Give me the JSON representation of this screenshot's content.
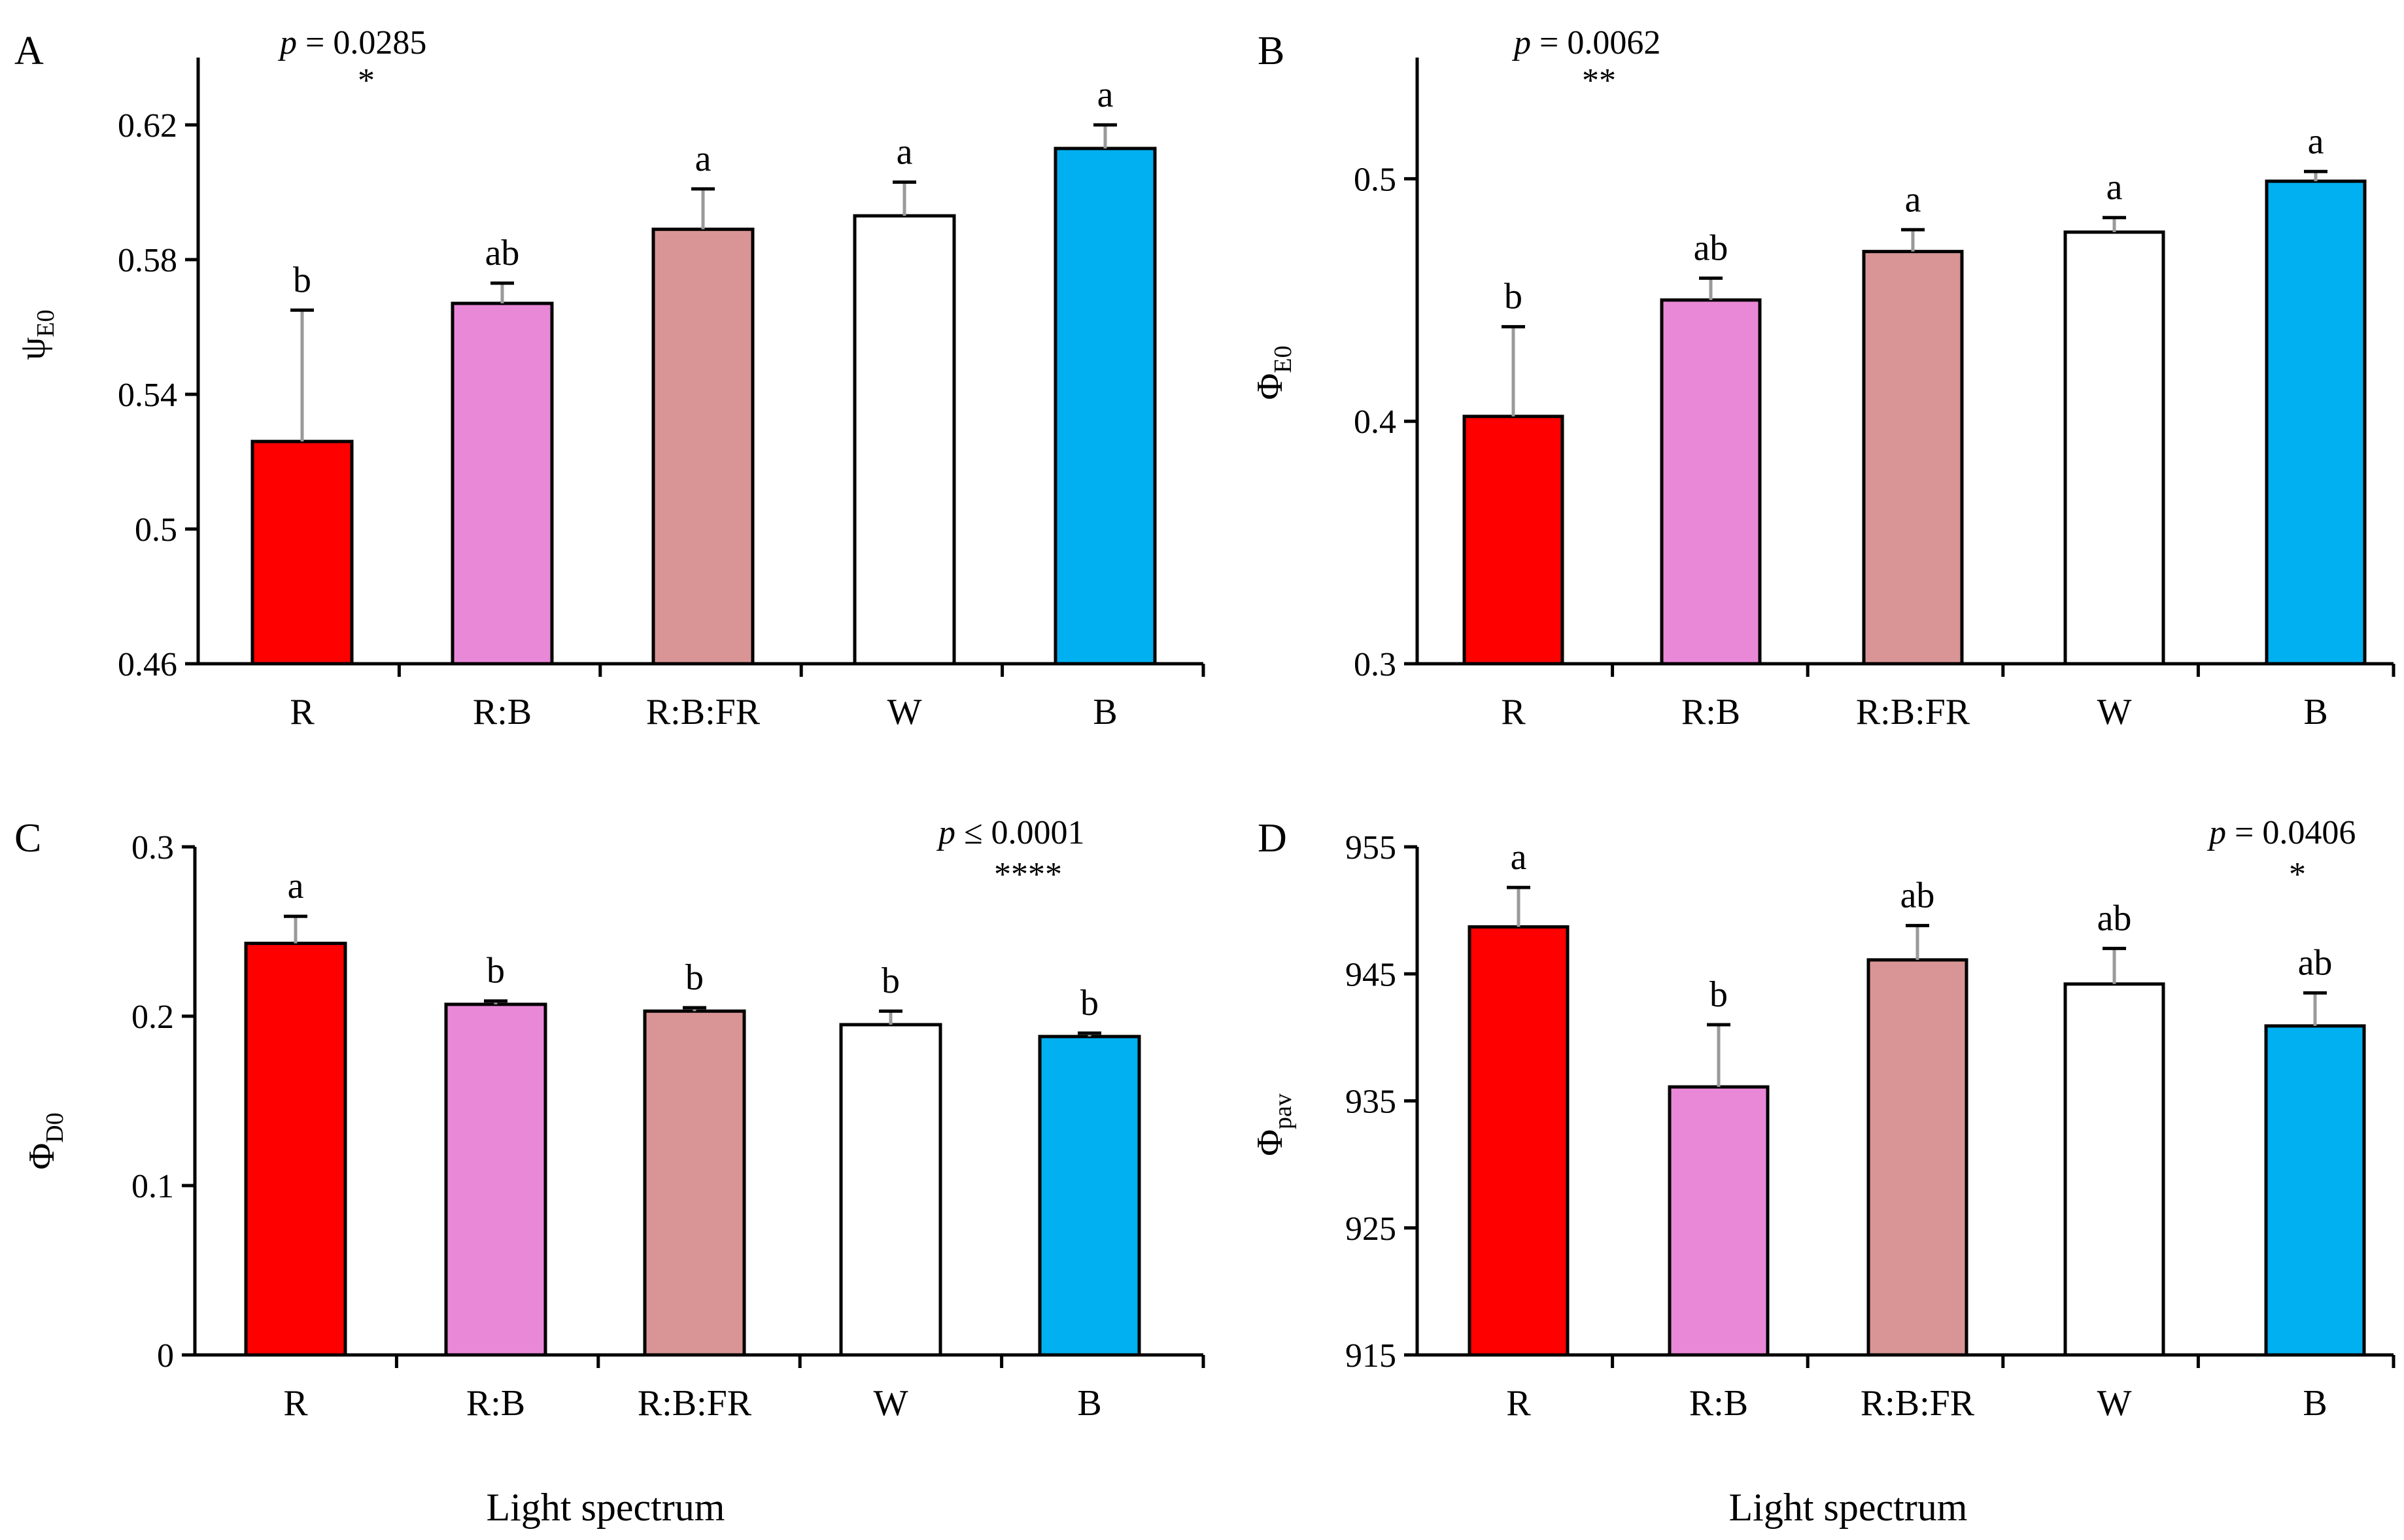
{
  "figure": {
    "xlabel": "Light spectrum",
    "bar_colors": [
      "#ff0000",
      "#ea88d8",
      "#d99595",
      "#ffffff",
      "#00b0f0"
    ]
  },
  "chart_data": [
    {
      "type": "bar",
      "panel_label": "A",
      "ylabel_main": "ψ",
      "ylabel_sub": "E0",
      "categories": [
        "R",
        "R:B",
        "R:B:FR",
        "W",
        "B"
      ],
      "values": [
        0.526,
        0.567,
        0.589,
        0.593,
        0.613
      ],
      "errors": [
        0.039,
        0.006,
        0.012,
        0.01,
        0.007
      ],
      "letters": [
        "b",
        "ab",
        "a",
        "a",
        "a"
      ],
      "ylim": [
        0.46,
        0.64
      ],
      "yticks": [
        0.46,
        0.5,
        0.54,
        0.58,
        0.62
      ],
      "ytick_labels": [
        "0.46",
        "0.5",
        "0.54",
        "0.58",
        "0.62"
      ],
      "p_prefix": "p",
      "p_rest": " = 0.0285",
      "significance": "*"
    },
    {
      "type": "bar",
      "panel_label": "B",
      "ylabel_main": "Φ",
      "ylabel_sub": "E0",
      "categories": [
        "R",
        "R:B",
        "R:B:FR",
        "W",
        "B"
      ],
      "values": [
        0.402,
        0.45,
        0.47,
        0.478,
        0.499
      ],
      "errors": [
        0.037,
        0.009,
        0.009,
        0.006,
        0.004
      ],
      "letters": [
        "b",
        "ab",
        "a",
        "a",
        "a"
      ],
      "ylim": [
        0.3,
        0.55
      ],
      "yticks": [
        0.3,
        0.4,
        0.5
      ],
      "ytick_labels": [
        "0.3",
        "0.4",
        "0.5"
      ],
      "p_prefix": "p",
      "p_rest": " = 0.0062",
      "significance": "**"
    },
    {
      "type": "bar",
      "panel_label": "C",
      "ylabel_main": "Φ",
      "ylabel_sub": "D0",
      "categories": [
        "R",
        "R:B",
        "R:B:FR",
        "W",
        "B"
      ],
      "values": [
        0.243,
        0.207,
        0.203,
        0.195,
        0.188
      ],
      "errors": [
        0.016,
        0.002,
        0.002,
        0.008,
        0.002
      ],
      "letters": [
        "a",
        "b",
        "b",
        "b",
        "b"
      ],
      "ylim": [
        0,
        0.3
      ],
      "yticks": [
        0,
        0.1,
        0.2,
        0.3
      ],
      "ytick_labels": [
        "0",
        "0.1",
        "0.2",
        "0.3"
      ],
      "p_prefix": "p",
      "p_rest": " ≤ 0.0001",
      "significance": "****"
    },
    {
      "type": "bar",
      "panel_label": "D",
      "ylabel_main": "Φ",
      "ylabel_sub": "pav",
      "categories": [
        "R",
        "R:B",
        "R:B:FR",
        "W",
        "B"
      ],
      "values": [
        948.7,
        936.1,
        946.1,
        944.2,
        940.9
      ],
      "errors": [
        3.1,
        4.9,
        2.7,
        2.8,
        2.6
      ],
      "letters": [
        "a",
        "b",
        "ab",
        "ab",
        "ab"
      ],
      "ylim": [
        915,
        955
      ],
      "yticks": [
        915,
        925,
        935,
        945,
        955
      ],
      "ytick_labels": [
        "915",
        "925",
        "935",
        "945",
        "955"
      ],
      "p_prefix": "p",
      "p_rest": " = 0.0406",
      "significance": "*"
    }
  ]
}
